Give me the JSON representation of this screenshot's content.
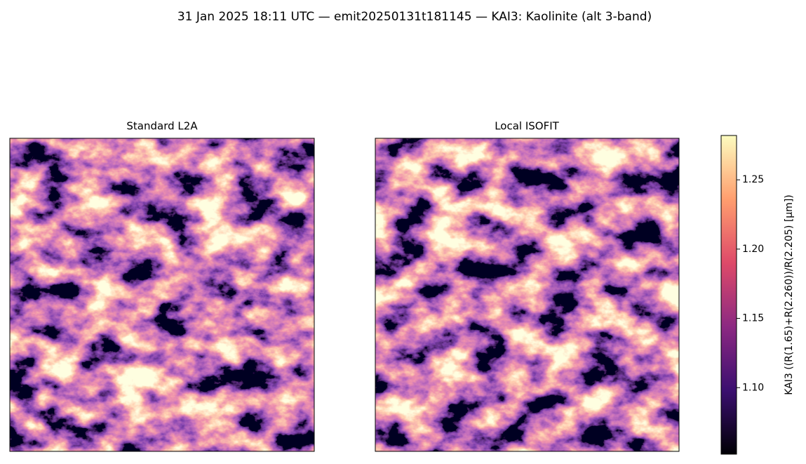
{
  "chart_data": {
    "type": "heatmap",
    "title": "31 Jan 2025 18:11 UTC — emit20250131t181145 — KAI3: Kaolinite (alt 3-band)",
    "panels": [
      {
        "title": "Standard L2A"
      },
      {
        "title": "Local ISOFIT"
      }
    ],
    "colormap": "magma",
    "colorbar": {
      "label": "KAI3  ((R(1.65)+R(2.260))/R(2.205)  [µm])",
      "ylim": [
        1.052,
        1.282
      ],
      "yticks": [
        {
          "value": 1.1,
          "label": "1.10"
        },
        1.15,
        {
          "value": 1.2,
          "label": "1.20"
        },
        1.25
      ]
    }
  }
}
